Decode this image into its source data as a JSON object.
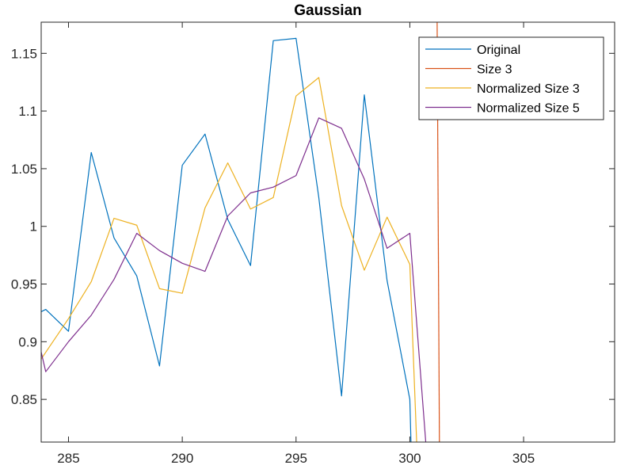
{
  "chart_data": {
    "type": "line",
    "title": "Gaussian",
    "xlabel": "",
    "ylabel": "",
    "xlim": [
      283.8,
      309
    ],
    "ylim": [
      0.813,
      1.177
    ],
    "x_ticks": [
      285,
      290,
      295,
      300,
      305
    ],
    "x_tick_labels": [
      "285",
      "290",
      "295",
      "300",
      "305"
    ],
    "y_ticks": [
      0.85,
      0.9,
      0.95,
      1,
      1.05,
      1.1,
      1.15
    ],
    "y_tick_labels": [
      "0.85",
      "0.9",
      "0.95",
      "1",
      "1.05",
      "1.1",
      "1.15"
    ],
    "grid": false,
    "legend_position": "top-right",
    "series": [
      {
        "name": "Original",
        "color": "#0072BD",
        "x": [
          283.8,
          284,
          285,
          286,
          287,
          288,
          289,
          290,
          291,
          292,
          293,
          294,
          295,
          296,
          297,
          298,
          299,
          300,
          300.05
        ],
        "y": [
          0.926,
          0.928,
          0.909,
          1.064,
          0.99,
          0.957,
          0.879,
          1.053,
          1.08,
          1.006,
          0.966,
          1.161,
          1.163,
          1.025,
          0.853,
          1.114,
          0.953,
          0.85,
          0.813
        ]
      },
      {
        "name": "Size 3",
        "color": "#D95319",
        "x": [
          301.2,
          301.3
        ],
        "y": [
          1.177,
          0.813
        ]
      },
      {
        "name": "Normalized Size 3",
        "color": "#EDB120",
        "x": [
          283.8,
          285,
          286,
          287,
          288,
          289,
          290,
          291,
          292,
          293,
          294,
          295,
          296,
          297,
          298,
          299,
          300,
          300.3
        ],
        "y": [
          0.885,
          0.92,
          0.952,
          1.007,
          1.001,
          0.946,
          0.942,
          1.016,
          1.055,
          1.015,
          1.025,
          1.113,
          1.129,
          1.018,
          0.962,
          1.008,
          0.967,
          0.813
        ]
      },
      {
        "name": "Normalized Size 5",
        "color": "#7E2F8E",
        "x": [
          283.8,
          284,
          285,
          286,
          287,
          288,
          289,
          290,
          291,
          292,
          293,
          294,
          295,
          296,
          297,
          298,
          299,
          300,
          300.7
        ],
        "y": [
          0.891,
          0.874,
          0.9,
          0.923,
          0.954,
          0.994,
          0.979,
          0.968,
          0.961,
          1.009,
          1.029,
          1.034,
          1.044,
          1.094,
          1.085,
          1.041,
          0.981,
          0.994,
          0.813
        ]
      }
    ]
  }
}
